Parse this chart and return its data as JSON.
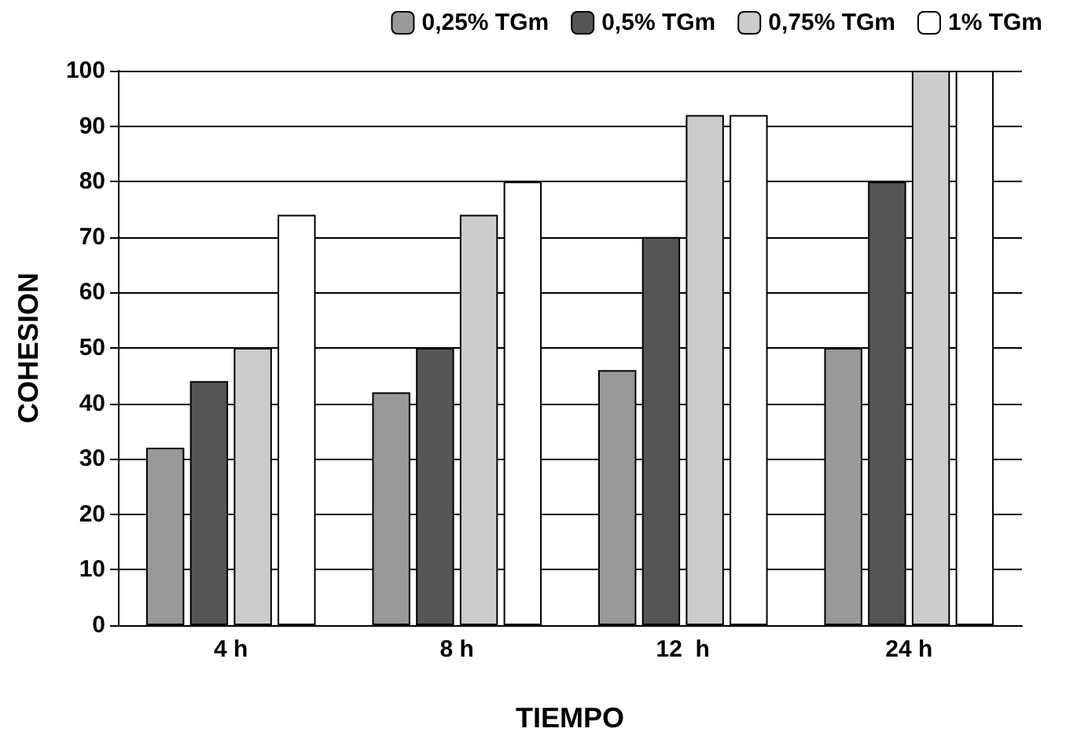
{
  "chart_data": {
    "type": "bar",
    "xlabel": "TIEMPO",
    "ylabel": "COHESION",
    "categories": [
      "4 h",
      "8 h",
      "12  h",
      "24 h"
    ],
    "series": [
      {
        "name": "0,25% TGm",
        "color": "#999999",
        "values": [
          32,
          42,
          46,
          50
        ]
      },
      {
        "name": "0,5% TGm",
        "color": "#555555",
        "values": [
          44,
          50,
          70,
          80
        ]
      },
      {
        "name": "0,75% TGm",
        "color": "#cccccc",
        "values": [
          50,
          74,
          92,
          100
        ]
      },
      {
        "name": "1% TGm",
        "color": "#ffffff",
        "values": [
          74,
          80,
          92,
          100
        ]
      }
    ],
    "ylim": [
      0,
      100
    ],
    "yticks": [
      0,
      10,
      20,
      30,
      40,
      50,
      60,
      70,
      80,
      90,
      100
    ],
    "grid": "y",
    "legend": "top"
  }
}
